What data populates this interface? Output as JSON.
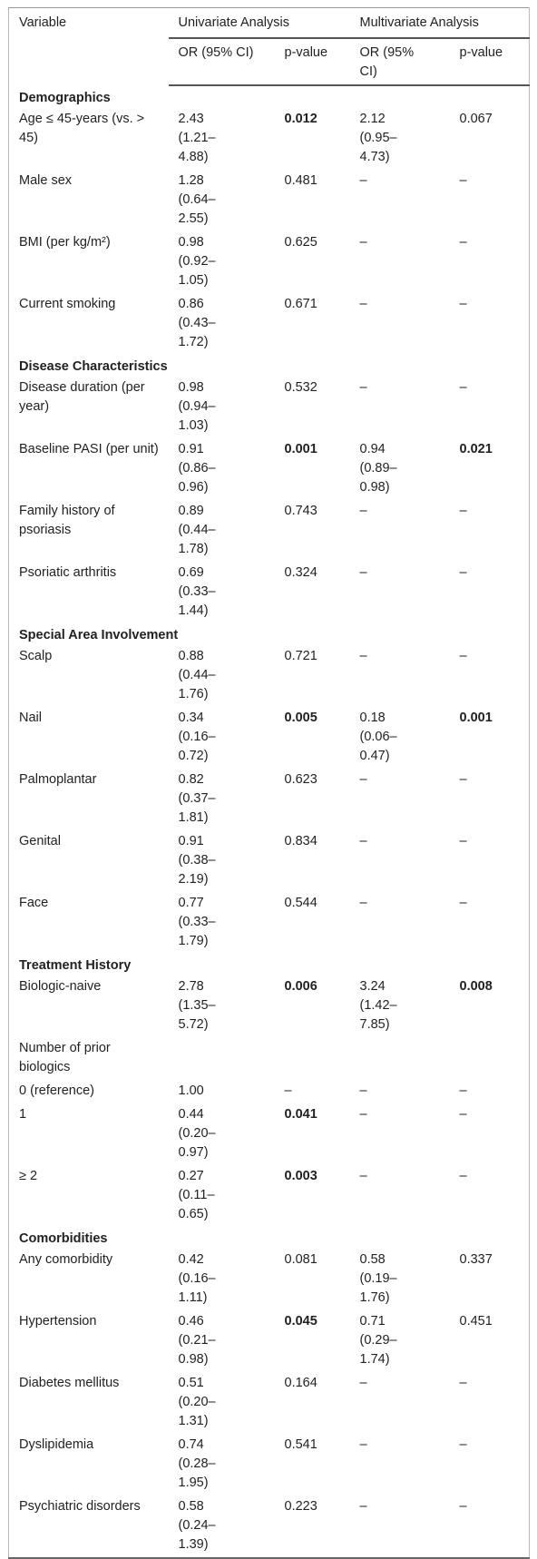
{
  "header": {
    "variable": "Variable",
    "univariate": "Univariate Analysis",
    "multivariate": "Multivariate Analysis",
    "sub": [
      "OR (95% CI)",
      "p-value",
      "OR (95% CI)",
      "p-value"
    ]
  },
  "sections": [
    {
      "title": "Demographics",
      "rows": [
        {
          "cells": [
            "Age ≤ 45-years (vs. > 45)",
            "2.43 (1.21–4.88)",
            "0.012",
            "2.12 (0.95–4.73)",
            "0.067"
          ],
          "bold_cols": [
            2
          ]
        },
        {
          "cells": [
            "Male sex",
            "1.28 (0.64–2.55)",
            "0.481",
            "–",
            "–"
          ],
          "bold_cols": []
        },
        {
          "cells": [
            "BMI (per kg/m²)",
            "0.98 (0.92–1.05)",
            "0.625",
            "–",
            "–"
          ],
          "bold_cols": []
        },
        {
          "cells": [
            "Current smoking",
            "0.86 (0.43–1.72)",
            "0.671",
            "–",
            "–"
          ],
          "bold_cols": []
        }
      ]
    },
    {
      "title": "Disease Characteristics",
      "rows": [
        {
          "cells": [
            "Disease duration (per year)",
            "0.98 (0.94–1.03)",
            "0.532",
            "–",
            "–"
          ],
          "bold_cols": []
        },
        {
          "cells": [
            "Baseline PASI (per unit)",
            "0.91 (0.86–0.96)",
            "0.001",
            "0.94 (0.89–0.98)",
            "0.021"
          ],
          "bold_cols": [
            2,
            4
          ]
        },
        {
          "cells": [
            "Family history of psoriasis",
            "0.89 (0.44–1.78)",
            "0.743",
            "–",
            "–"
          ],
          "bold_cols": []
        },
        {
          "cells": [
            "Psoriatic arthritis",
            "0.69 (0.33–1.44)",
            "0.324",
            "–",
            "–"
          ],
          "bold_cols": []
        }
      ]
    },
    {
      "title": "Special Area Involvement",
      "rows": [
        {
          "cells": [
            "Scalp",
            "0.88 (0.44–1.76)",
            "0.721",
            "–",
            "–"
          ],
          "bold_cols": []
        },
        {
          "cells": [
            "Nail",
            "0.34 (0.16–0.72)",
            "0.005",
            "0.18 (0.06–0.47)",
            "0.001"
          ],
          "bold_cols": [
            2,
            4
          ]
        },
        {
          "cells": [
            "Palmoplantar",
            "0.82 (0.37–1.81)",
            "0.623",
            "–",
            "–"
          ],
          "bold_cols": []
        },
        {
          "cells": [
            "Genital",
            "0.91 (0.38–2.19)",
            "0.834",
            "–",
            "–"
          ],
          "bold_cols": []
        },
        {
          "cells": [
            "Face",
            "0.77 (0.33–1.79)",
            "0.544",
            "–",
            "–"
          ],
          "bold_cols": []
        }
      ]
    },
    {
      "title": "Treatment History",
      "rows": [
        {
          "cells": [
            "Biologic-naive",
            "2.78 (1.35–5.72)",
            "0.006",
            "3.24 (1.42–7.85)",
            "0.008"
          ],
          "bold_cols": [
            2,
            4
          ]
        },
        {
          "cells": [
            "Number of prior biologics",
            null,
            null,
            null,
            null
          ],
          "bold_cols": []
        },
        {
          "cells": [
            "0 (reference)",
            "1.00",
            "–",
            "–",
            "–"
          ],
          "bold_cols": []
        },
        {
          "cells": [
            "1",
            "0.44 (0.20–0.97)",
            "0.041",
            "–",
            "–"
          ],
          "bold_cols": [
            2
          ]
        },
        {
          "cells": [
            "≥ 2",
            "0.27 (0.11–0.65)",
            "0.003",
            "–",
            "–"
          ],
          "bold_cols": [
            2
          ]
        }
      ]
    },
    {
      "title": "Comorbidities",
      "rows": [
        {
          "cells": [
            "Any comorbidity",
            "0.42 (0.16–1.11)",
            "0.081",
            "0.58 (0.19–1.76)",
            "0.337"
          ],
          "bold_cols": []
        },
        {
          "cells": [
            "Hypertension",
            "0.46 (0.21–0.98)",
            "0.045",
            "0.71 (0.29–1.74)",
            "0.451"
          ],
          "bold_cols": [
            2
          ]
        },
        {
          "cells": [
            "Diabetes mellitus",
            "0.51 (0.20–1.31)",
            "0.164",
            "–",
            "–"
          ],
          "bold_cols": []
        },
        {
          "cells": [
            "Dyslipidemia",
            "0.74 (0.28–1.95)",
            "0.541",
            "–",
            "–"
          ],
          "bold_cols": []
        },
        {
          "cells": [
            "Psychiatric disorders",
            "0.58 (0.24–1.39)",
            "0.223",
            "–",
            "–"
          ],
          "bold_cols": []
        }
      ]
    }
  ]
}
